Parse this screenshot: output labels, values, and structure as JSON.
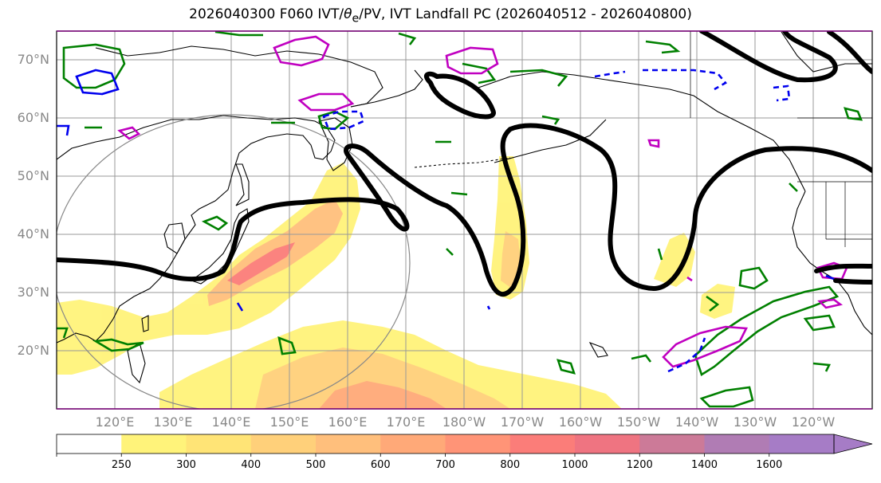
{
  "title": "2026040300 F060 IVT/θe/PV, IVT Landfall PC (2026040512 - 2026040800)",
  "title_parts": {
    "prefix": "2026040300 F060 IVT/",
    "theta": "θ",
    "sub": "e",
    "suffix": "/PV, IVT Landfall PC (2026040512 - 2026040800)"
  },
  "map": {
    "projection": "cylindrical",
    "lon_range_east": [
      110,
      250
    ],
    "lat_range": [
      10,
      75
    ],
    "grid": true,
    "lat_labels": [
      "70°N",
      "60°N",
      "50°N",
      "40°N",
      "30°N",
      "20°N"
    ],
    "lon_labels": [
      "120°E",
      "130°E",
      "140°E",
      "150°E",
      "160°E",
      "170°E",
      "180°W",
      "170°W",
      "160°W",
      "150°W",
      "140°W",
      "130°W",
      "120°W"
    ],
    "lat_ticks": [
      70,
      60,
      50,
      40,
      30,
      20
    ],
    "lon_ticks": [
      120,
      130,
      140,
      150,
      160,
      170,
      180,
      190,
      200,
      210,
      220,
      230,
      240
    ],
    "circle": {
      "center_lon": 140,
      "center_lat": 35,
      "radius_deg": 26,
      "color": "#888888"
    }
  },
  "colorbar": {
    "levels": [
      250,
      300,
      400,
      500,
      600,
      700,
      800,
      1000,
      1200,
      1400,
      1600
    ],
    "labels": [
      "250",
      "300",
      "400",
      "500",
      "600",
      "700",
      "800",
      "1000",
      "1200",
      "1400",
      "1600"
    ],
    "colors": [
      "#fff37a",
      "#ffe476",
      "#ffd07a",
      "#ffbf7c",
      "#ffa978",
      "#ff9477",
      "#fb7d79",
      "#ef7481",
      "#cc7a98",
      "#b07cb4",
      "#a67cc6"
    ],
    "extend": "max"
  },
  "colors": {
    "ivt_base": "#ffee70",
    "theta_e": "#008000",
    "pv": "#c000c0",
    "negative": "#0000ee",
    "dynamic_tropopause": "#000000"
  }
}
